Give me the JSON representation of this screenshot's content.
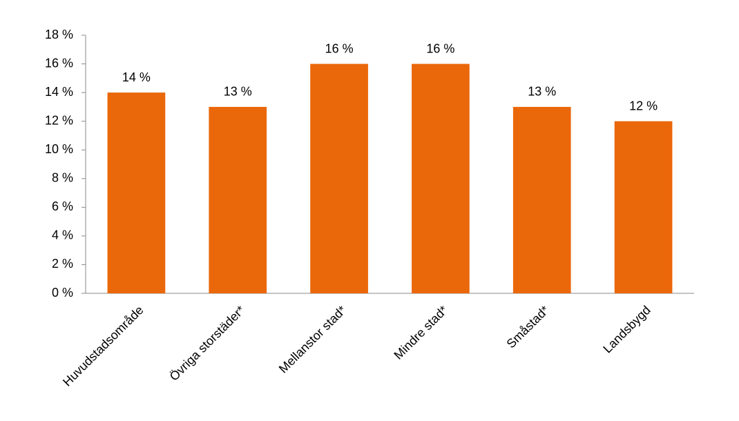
{
  "chart_data": {
    "type": "bar",
    "categories": [
      "Huvudstadsområde",
      "Övriga storstäder*",
      "Mellanstor stad*",
      "Mindre stad*",
      "Småstad*",
      "Landsbygd"
    ],
    "values": [
      14,
      13,
      16,
      16,
      13,
      12
    ],
    "value_labels": [
      "14 %",
      "13 %",
      "16 %",
      "16 %",
      "13 %",
      "12 %"
    ],
    "color": "#ea670a",
    "ylim": [
      0,
      18
    ],
    "yticks": [
      {
        "value": 0,
        "label": "0 %"
      },
      {
        "value": 2,
        "label": "2 %"
      },
      {
        "value": 4,
        "label": "4 %"
      },
      {
        "value": 6,
        "label": "6 %"
      },
      {
        "value": 8,
        "label": "8 %"
      },
      {
        "value": 10,
        "label": "10 %"
      },
      {
        "value": 12,
        "label": "12 %"
      },
      {
        "value": 14,
        "label": "14 %"
      },
      {
        "value": 16,
        "label": "16 %"
      },
      {
        "value": 18,
        "label": "18 %"
      }
    ],
    "grid": false
  }
}
